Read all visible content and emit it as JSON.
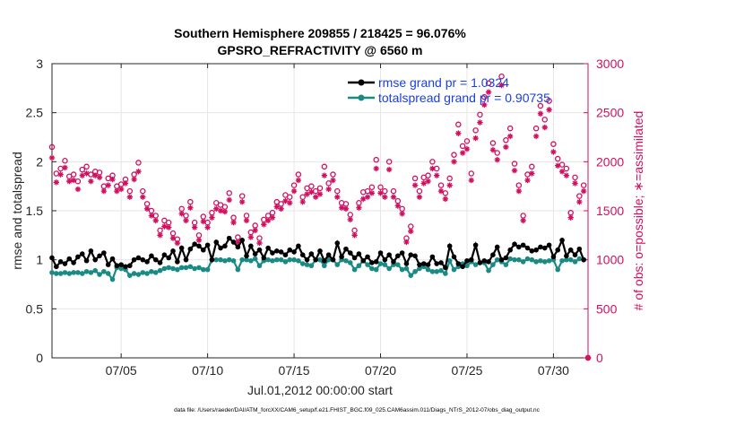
{
  "chart_data": {
    "type": "line",
    "title": "Southern Hemisphere 209855 / 218425 = 96.076%",
    "subtitle": "GPSRO_REFRACTIVITY @ 6560 m",
    "xlabel": "Jul.01,2012 00:00:00 start",
    "ylabel_left": "rmse and totalspread",
    "ylabel_right": "# of obs: o=possible; ∗=assimilated",
    "footer": "data file: /Users/raeder/DAI/ATM_forcXX/CAM6_setup/f.e21.FHIST_BGC.f09_025.CAM6assim.011/Diags_NTrS_2012-07/obs_diag_output.nc",
    "xlim": [
      1,
      32
    ],
    "ylim_left": [
      0,
      3
    ],
    "ylim_right": [
      0,
      3000
    ],
    "x_ticks": [
      5,
      10,
      15,
      20,
      25,
      30
    ],
    "x_tick_labels": [
      "07/05",
      "07/10",
      "07/15",
      "07/20",
      "07/25",
      "07/30"
    ],
    "y_left_ticks": [
      "0",
      "0.5",
      "1",
      "1.5",
      "2",
      "2.5",
      "3"
    ],
    "y_right_ticks": [
      "0",
      "500",
      "1000",
      "1500",
      "2000",
      "2500",
      "3000"
    ],
    "grid": true,
    "legend_position": "top-right",
    "x_day": [
      1.0,
      1.25,
      1.5,
      1.75,
      2.0,
      2.25,
      2.5,
      2.75,
      3.0,
      3.25,
      3.5,
      3.75,
      4.0,
      4.25,
      4.5,
      4.75,
      5.0,
      5.25,
      5.5,
      5.75,
      6.0,
      6.25,
      6.5,
      6.75,
      7.0,
      7.25,
      7.5,
      7.75,
      8.0,
      8.25,
      8.5,
      8.75,
      9.0,
      9.25,
      9.5,
      9.75,
      10.0,
      10.25,
      10.5,
      10.75,
      11.0,
      11.25,
      11.5,
      11.75,
      12.0,
      12.25,
      12.5,
      12.75,
      13.0,
      13.25,
      13.5,
      13.75,
      14.0,
      14.25,
      14.5,
      14.75,
      15.0,
      15.25,
      15.5,
      15.75,
      16.0,
      16.25,
      16.5,
      16.75,
      17.0,
      17.25,
      17.5,
      17.75,
      18.0,
      18.25,
      18.5,
      18.75,
      19.0,
      19.25,
      19.5,
      19.75,
      20.0,
      20.25,
      20.5,
      20.75,
      21.0,
      21.25,
      21.5,
      21.75,
      22.0,
      22.25,
      22.5,
      22.75,
      23.0,
      23.25,
      23.5,
      23.75,
      24.0,
      24.25,
      24.5,
      24.75,
      25.0,
      25.25,
      25.5,
      25.75,
      26.0,
      26.25,
      26.5,
      26.75,
      27.0,
      27.25,
      27.5,
      27.75,
      28.0,
      28.25,
      28.5,
      28.75,
      29.0,
      29.25,
      29.5,
      29.75,
      30.0,
      30.25,
      30.5,
      30.75,
      31.0,
      31.25,
      31.5,
      31.75
    ],
    "series": [
      {
        "name": "rmse grand pr = 1.0324",
        "axis": "left",
        "color": "#000000",
        "marker": "filled-circle",
        "values": [
          1.02,
          0.93,
          0.98,
          0.96,
          1.01,
          0.97,
          1.03,
          1.06,
          0.99,
          1.09,
          1.0,
          1.04,
          1.07,
          0.95,
          1.01,
          0.94,
          0.95,
          0.93,
          0.94,
          1.0,
          1.02,
          1.0,
          0.98,
          1.04,
          1.0,
          0.97,
          1.05,
          1.02,
          1.09,
          0.98,
          1.12,
          1.0,
          1.11,
          1.16,
          1.14,
          1.1,
          1.15,
          1.0,
          1.18,
          1.12,
          1.14,
          1.22,
          1.18,
          1.13,
          1.2,
          1.04,
          1.14,
          1.06,
          1.1,
          1.02,
          1.12,
          1.07,
          1.09,
          1.08,
          1.05,
          1.1,
          1.08,
          1.14,
          1.05,
          1.0,
          1.06,
          1.0,
          1.09,
          0.99,
          1.05,
          1.0,
          1.17,
          1.03,
          1.11,
          1.07,
          1.02,
          1.06,
          0.99,
          1.03,
          0.97,
          0.98,
          1.07,
          1.0,
          1.05,
          0.98,
          1.04,
          1.07,
          0.96,
          1.05,
          1.04,
          0.95,
          0.96,
          0.95,
          1.03,
          0.96,
          0.97,
          0.92,
          1.14,
          1.03,
          0.96,
          0.93,
          0.99,
          1.0,
          1.15,
          0.97,
          0.99,
          0.98,
          1.05,
          1.13,
          1.0,
          1.02,
          1.1,
          1.16,
          1.13,
          1.15,
          1.12,
          1.09,
          1.1,
          1.13,
          1.12,
          1.15,
          1.03,
          1.1,
          1.2,
          1.04,
          1.1,
          1.05,
          1.11,
          1.0
        ]
      },
      {
        "name": "totalspread grand pr = 0.90735",
        "axis": "left",
        "color": "#1a8a84",
        "marker": "filled-circle",
        "values": [
          0.87,
          0.86,
          0.86,
          0.87,
          0.86,
          0.87,
          0.87,
          0.86,
          0.88,
          0.87,
          0.89,
          0.85,
          0.88,
          0.86,
          0.8,
          0.92,
          0.91,
          0.9,
          0.84,
          0.86,
          0.85,
          0.87,
          0.86,
          0.88,
          0.87,
          0.89,
          0.91,
          0.92,
          0.91,
          0.9,
          0.92,
          0.92,
          0.93,
          0.91,
          0.92,
          0.9,
          0.9,
          1.0,
          1.0,
          1.0,
          0.99,
          1.0,
          0.99,
          0.9,
          1.0,
          1.0,
          0.99,
          1.01,
          0.94,
          0.99,
          1.0,
          0.99,
          1.0,
          1.0,
          0.98,
          1.0,
          1.0,
          0.99,
          0.96,
          0.95,
          0.94,
          1.0,
          1.0,
          0.94,
          1.0,
          1.0,
          0.95,
          1.0,
          0.99,
          0.97,
          0.9,
          0.94,
          0.99,
          0.95,
          0.91,
          0.9,
          0.96,
          0.95,
          0.91,
          0.95,
          0.95,
          0.9,
          0.91,
          0.84,
          0.88,
          0.91,
          0.93,
          0.9,
          0.88,
          0.88,
          0.89,
          0.86,
          0.99,
          0.9,
          0.93,
          0.96,
          0.94,
          0.98,
          0.95,
          0.97,
          0.97,
          0.89,
          0.95,
          1.0,
          0.98,
          0.95,
          1.01,
          1.0,
          1.0,
          0.98,
          1.01,
          1.0,
          0.98,
          0.99,
          0.98,
          0.99,
          1.0,
          0.9,
          0.99,
          1.0,
          1.0,
          0.98,
          1.01,
          1.0
        ]
      },
      {
        "name": "possible",
        "axis": "right",
        "color": "#d0105f",
        "marker": "open-circle",
        "values": [
          2150,
          1880,
          1930,
          2010,
          1850,
          1870,
          1800,
          1920,
          1950,
          1870,
          1900,
          1890,
          1750,
          1830,
          1860,
          1750,
          1770,
          1820,
          1700,
          1870,
          1990,
          1700,
          1570,
          1500,
          1450,
          1300,
          1400,
          1380,
          1270,
          1210,
          1520,
          1450,
          1590,
          1380,
          1250,
          1440,
          1380,
          1480,
          1580,
          1560,
          1540,
          1680,
          1430,
          1230,
          1650,
          1450,
          1280,
          1350,
          1220,
          1410,
          1450,
          1480,
          1590,
          1570,
          1660,
          1640,
          1760,
          1870,
          1640,
          1730,
          1750,
          1700,
          1730,
          1950,
          1780,
          1870,
          1700,
          1580,
          1570,
          1460,
          1300,
          1580,
          1690,
          1700,
          1740,
          2020,
          1740,
          1700,
          2000,
          1700,
          1600,
          1520,
          1220,
          1340,
          1830,
          1700,
          1840,
          1860,
          2000,
          1930,
          1760,
          1680,
          1830,
          2070,
          2380,
          2160,
          2210,
          1880,
          2320,
          2480,
          2660,
          2800,
          2190,
          2090,
          2870,
          2220,
          2340,
          1980,
          1760,
          1450,
          1870,
          1950,
          2340,
          2570,
          2430,
          2620,
          2180,
          2030,
          1970,
          1930,
          1480,
          1840,
          1650,
          1760
        ]
      },
      {
        "name": "assimilated",
        "axis": "right",
        "color": "#d0105f",
        "marker": "star",
        "values": [
          2040,
          1790,
          1870,
          1940,
          1800,
          1810,
          1720,
          1860,
          1880,
          1800,
          1860,
          1840,
          1700,
          1760,
          1820,
          1700,
          1720,
          1780,
          1640,
          1820,
          1900,
          1640,
          1520,
          1450,
          1400,
          1250,
          1340,
          1330,
          1220,
          1170,
          1470,
          1400,
          1530,
          1330,
          1200,
          1390,
          1330,
          1430,
          1520,
          1500,
          1490,
          1610,
          1380,
          1180,
          1590,
          1400,
          1230,
          1300,
          1170,
          1360,
          1400,
          1430,
          1540,
          1520,
          1600,
          1580,
          1700,
          1810,
          1590,
          1670,
          1690,
          1640,
          1670,
          1860,
          1720,
          1810,
          1640,
          1530,
          1520,
          1410,
          1250,
          1530,
          1620,
          1640,
          1680,
          1930,
          1680,
          1640,
          1920,
          1640,
          1550,
          1470,
          1180,
          1290,
          1760,
          1640,
          1780,
          1800,
          1930,
          1860,
          1700,
          1620,
          1760,
          2000,
          2290,
          2090,
          2130,
          1810,
          2240,
          2400,
          2580,
          2710,
          2120,
          2020,
          2780,
          2150,
          2260,
          1910,
          1700,
          1400,
          1810,
          1880,
          2260,
          2490,
          2350,
          2530,
          2100,
          1960,
          1900,
          1860,
          1430,
          1780,
          1590,
          1700
        ]
      }
    ]
  }
}
